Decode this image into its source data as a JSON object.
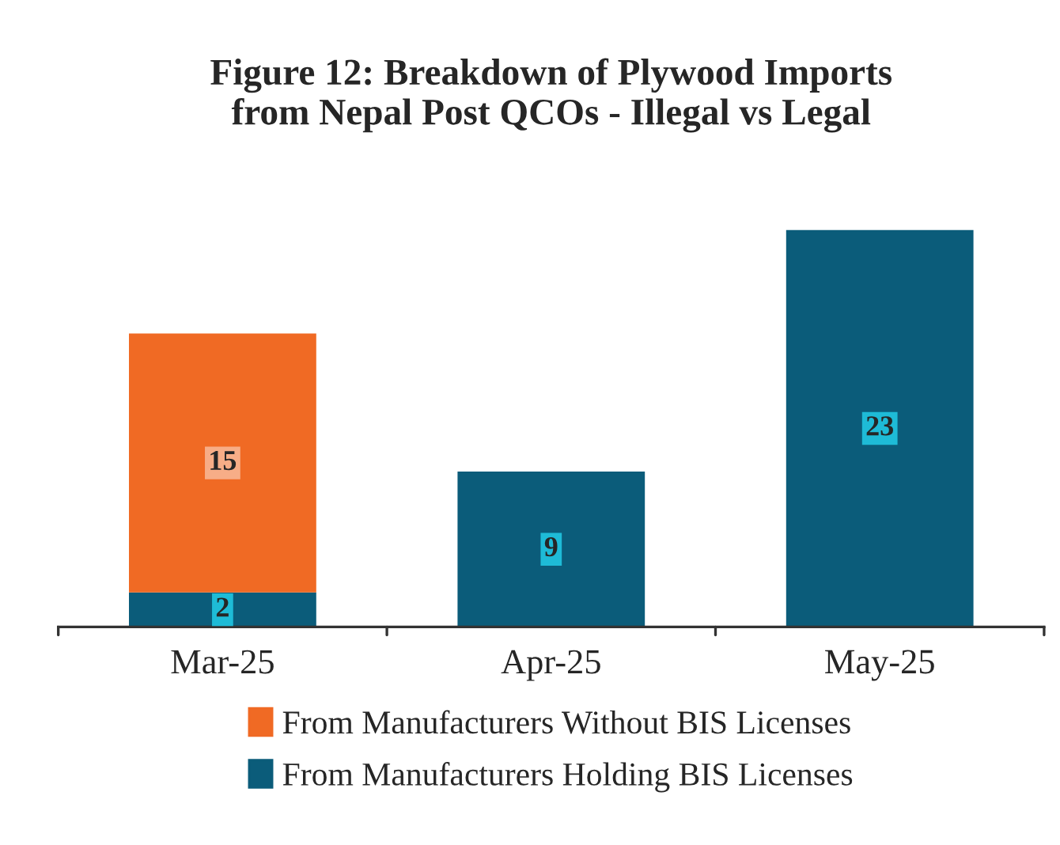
{
  "chart_data": {
    "type": "bar",
    "title": "Figure 12: Breakdown of Plywood Imports\nfrom Nepal Post QCOs - Illegal vs Legal",
    "categories": [
      "Mar-25",
      "Apr-25",
      "May-25"
    ],
    "stacked": true,
    "data_labels": true,
    "legend": "bottom",
    "grid": false,
    "series": [
      {
        "name": "From Manufacturers Holding BIS Licenses",
        "color": "#0b5c7a",
        "values": [
          2,
          9,
          23
        ]
      },
      {
        "name": "From Manufacturers Without BIS Licenses",
        "color": "#f06a24",
        "values": [
          15,
          null,
          null
        ]
      }
    ]
  }
}
